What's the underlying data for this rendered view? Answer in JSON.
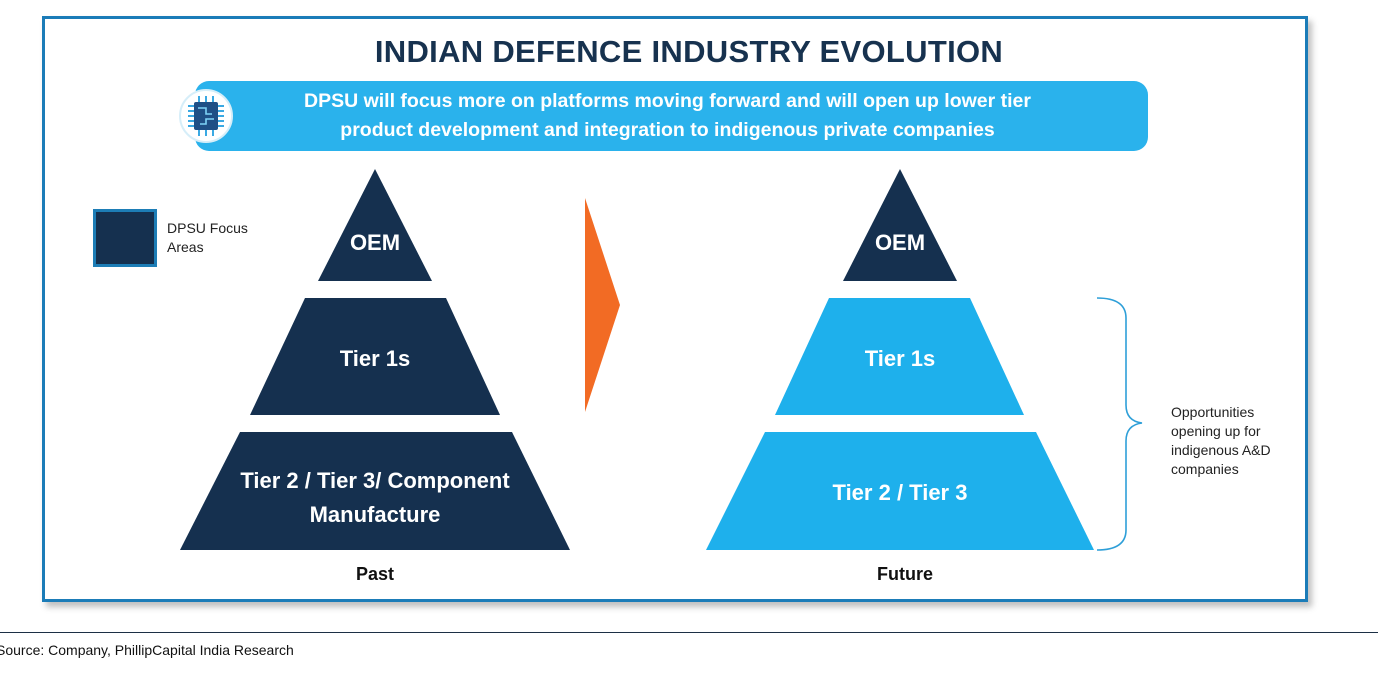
{
  "title": "INDIAN DEFENCE INDUSTRY EVOLUTION",
  "banner": {
    "line1": "DPSU will focus more on platforms moving forward and will open up lower tier",
    "line2": "product development and integration to indigenous private companies",
    "icon": "circuit-chip-icon"
  },
  "legend": {
    "label_line1": "DPSU Focus",
    "label_line2": "Areas",
    "color": "#15304f"
  },
  "past": {
    "caption": "Past",
    "oem": "OEM",
    "tier1": "Tier 1s",
    "tier2_line1": "Tier 2 / Tier 3/ Component",
    "tier2_line2": "Manufacture"
  },
  "future": {
    "caption": "Future",
    "oem": "OEM",
    "tier1": "Tier 1s",
    "tier2": "Tier 2 / Tier 3"
  },
  "arrow": {
    "icon": "orange-chevron-arrow-icon",
    "color": "#f26b24"
  },
  "opportunities": {
    "line1": "Opportunities",
    "line2": "opening up for",
    "line3": "indigenous A&D",
    "line4": "companies"
  },
  "colors": {
    "dark_navy": "#15304f",
    "light_blue": "#1eb0ec",
    "frame_blue": "#1b7cb8"
  },
  "source": "Source: Company, PhillipCapital India Research"
}
